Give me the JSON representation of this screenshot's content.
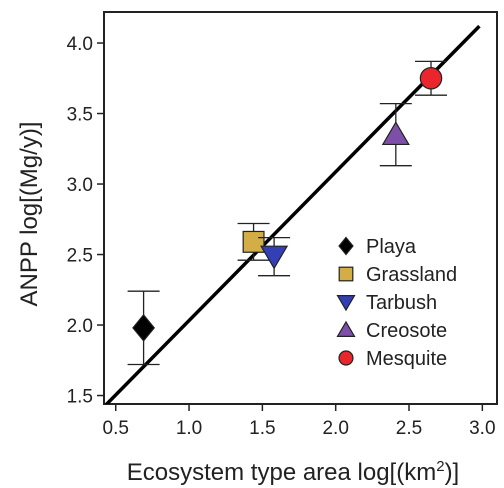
{
  "chart_data": {
    "type": "scatter",
    "title": "",
    "xlabel_main": "Ecosystem type area log[(km",
    "xlabel_sup": "2",
    "xlabel_end": ")]",
    "ylabel": "ANPP log[(Mg/y)]",
    "xlim": [
      0.42,
      3.1
    ],
    "ylim": [
      1.44,
      4.22
    ],
    "xticks": [
      {
        "value": 0.5,
        "label": "0.5"
      },
      {
        "value": 1.0,
        "label": "1.0"
      },
      {
        "value": 1.5,
        "label": "1.5"
      },
      {
        "value": 2.0,
        "label": "2.0"
      },
      {
        "value": 2.5,
        "label": "2.5"
      },
      {
        "value": 3.0,
        "label": "3.0"
      }
    ],
    "yticks": [
      {
        "value": 1.5,
        "label": "1.5"
      },
      {
        "value": 2.0,
        "label": "2.0"
      },
      {
        "value": 2.5,
        "label": "2.5"
      },
      {
        "value": 3.0,
        "label": "3.0"
      },
      {
        "value": 3.5,
        "label": "3.5"
      },
      {
        "value": 4.0,
        "label": "4.0"
      }
    ],
    "fit_line": {
      "x": [
        0.42,
        2.98
      ],
      "y": [
        1.42,
        4.12
      ]
    },
    "legend_position": "center-right",
    "series": [
      {
        "name": "Playa",
        "marker": "diamond",
        "color": "#000000",
        "x": 0.69,
        "y": 1.98,
        "err_low": 1.72,
        "err_high": 2.24
      },
      {
        "name": "Grassland",
        "marker": "square",
        "color": "#d3ad45",
        "x": 1.44,
        "y": 2.59,
        "err_low": 2.46,
        "err_high": 2.72
      },
      {
        "name": "Tarbush",
        "marker": "triangle-down",
        "color": "#3340b5",
        "x": 1.58,
        "y": 2.49,
        "err_low": 2.35,
        "err_high": 2.62
      },
      {
        "name": "Creosote",
        "marker": "triangle-up",
        "color": "#7d4fa8",
        "x": 2.41,
        "y": 3.35,
        "err_low": 3.13,
        "err_high": 3.57
      },
      {
        "name": "Mesquite",
        "marker": "circle",
        "color": "#e8262c",
        "x": 2.65,
        "y": 3.75,
        "err_low": 3.63,
        "err_high": 3.87
      }
    ]
  }
}
